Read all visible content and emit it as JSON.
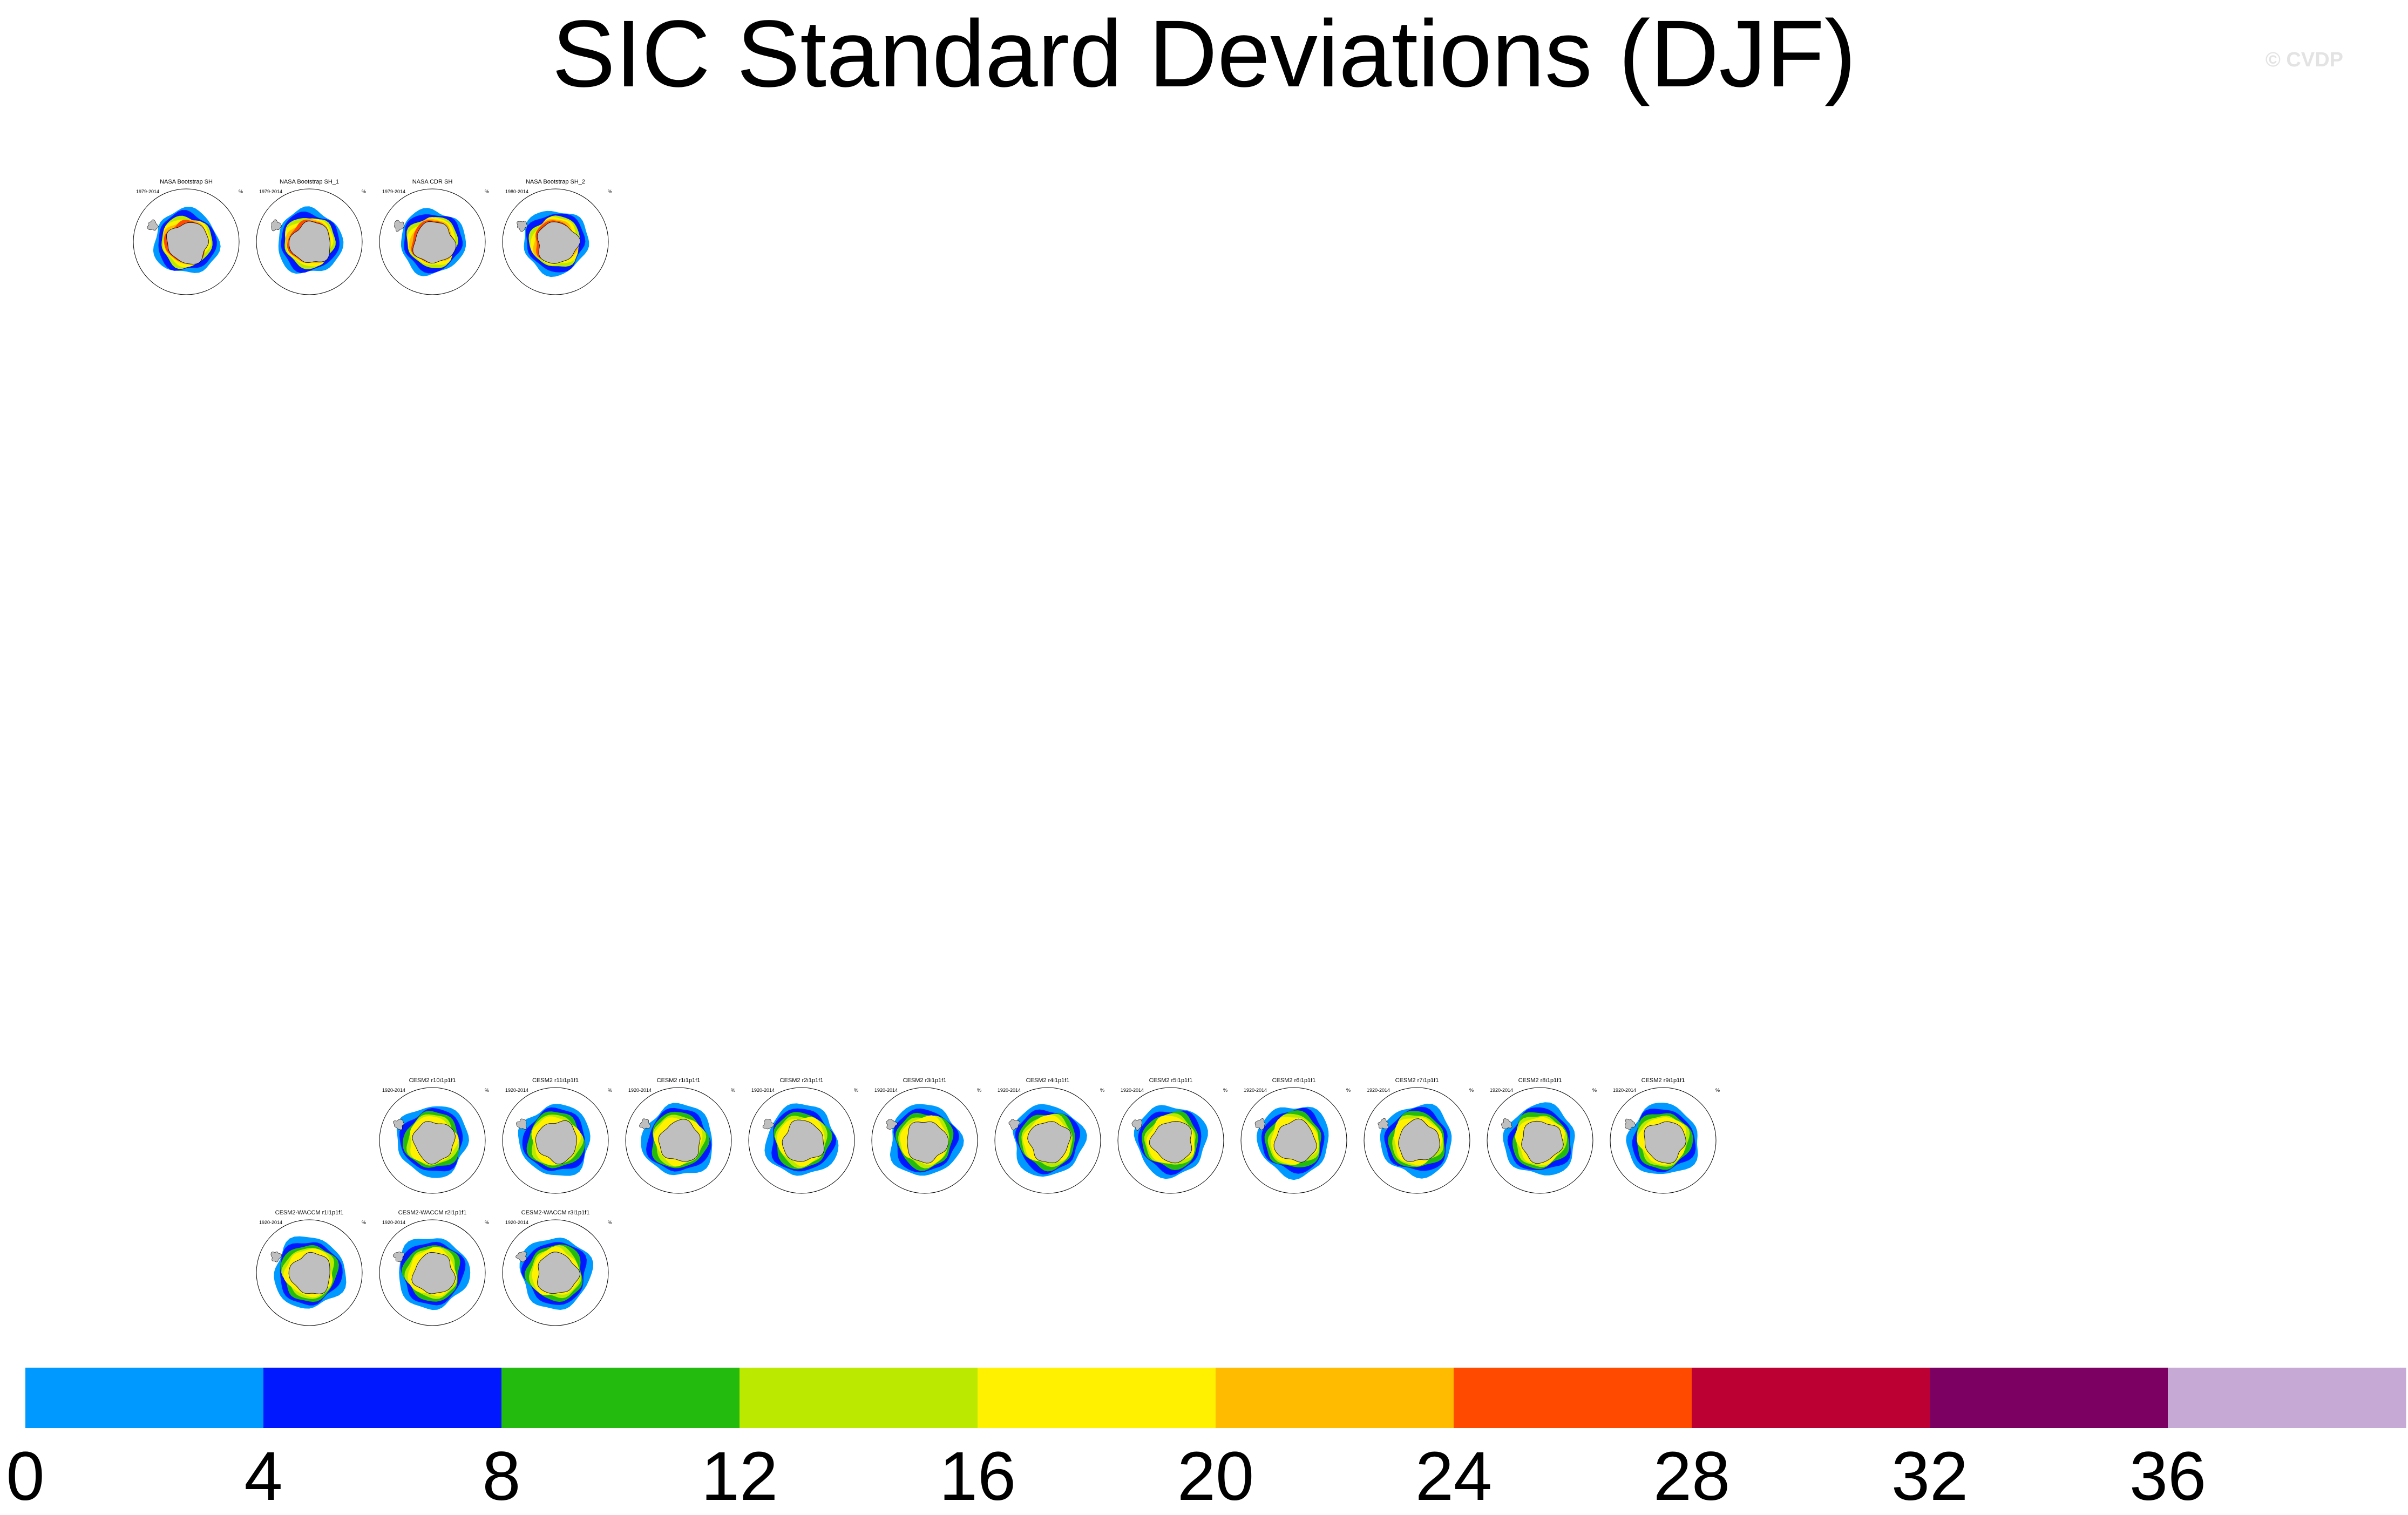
{
  "title": "SIC Standard Deviations (DJF)",
  "watermark": "© CVDP",
  "units": "%",
  "map_colors": {
    "land": "#bfbfbf",
    "ocean": "#ffffff",
    "outline": "#000000"
  },
  "chart_data": {
    "type": "heatmap",
    "title": "SIC Standard Deviations (DJF)",
    "projection": "south polar stereographic",
    "colorbar": {
      "levels": [
        0,
        4,
        8,
        12,
        16,
        20,
        24,
        28,
        32,
        36
      ],
      "tick_labels": [
        "0",
        "4",
        "8",
        "12",
        "16",
        "20",
        "24",
        "28",
        "32",
        "36"
      ],
      "colors": [
        "#0099ff",
        "#0018ff",
        "#22bb0e",
        "#bbea00",
        "#fff100",
        "#ffbb00",
        "#ff4a00",
        "#bd0034",
        "#7b0062",
        "#c7a9d5"
      ],
      "units": "%"
    },
    "panels": [
      {
        "name": "NASA Bootstrap SH",
        "years": "1979-2014",
        "row": 0,
        "col": 0
      },
      {
        "name": "NASA Bootstrap SH_1",
        "years": "1979-2014",
        "row": 0,
        "col": 1
      },
      {
        "name": "NASA CDR SH",
        "years": "1979-2014",
        "row": 0,
        "col": 2
      },
      {
        "name": "NASA Bootstrap SH_2",
        "years": "1980-2014",
        "row": 0,
        "col": 3
      },
      {
        "name": "CESM2 r10i1p1f1",
        "years": "1920-2014",
        "row": 1,
        "col": 2
      },
      {
        "name": "CESM2 r11i1p1f1",
        "years": "1920-2014",
        "row": 1,
        "col": 3
      },
      {
        "name": "CESM2 r1i1p1f1",
        "years": "1920-2014",
        "row": 1,
        "col": 4
      },
      {
        "name": "CESM2 r2i1p1f1",
        "years": "1920-2014",
        "row": 1,
        "col": 5
      },
      {
        "name": "CESM2 r3i1p1f1",
        "years": "1920-2014",
        "row": 1,
        "col": 6
      },
      {
        "name": "CESM2 r4i1p1f1",
        "years": "1920-2014",
        "row": 1,
        "col": 7
      },
      {
        "name": "CESM2 r5i1p1f1",
        "years": "1920-2014",
        "row": 1,
        "col": 8
      },
      {
        "name": "CESM2 r6i1p1f1",
        "years": "1920-2014",
        "row": 1,
        "col": 9
      },
      {
        "name": "CESM2 r7i1p1f1",
        "years": "1920-2014",
        "row": 1,
        "col": 10
      },
      {
        "name": "CESM2 r8i1p1f1",
        "years": "1920-2014",
        "row": 1,
        "col": 11
      },
      {
        "name": "CESM2 r9i1p1f1",
        "years": "1920-2014",
        "row": 1,
        "col": 12
      },
      {
        "name": "CESM2-WACCM r1i1p1f1",
        "years": "1920-2014",
        "row": 2,
        "col": 1
      },
      {
        "name": "CESM2-WACCM r2i1p1f1",
        "years": "1920-2014",
        "row": 2,
        "col": 2
      },
      {
        "name": "CESM2-WACCM r3i1p1f1",
        "years": "1920-2014",
        "row": 2,
        "col": 3
      }
    ]
  }
}
